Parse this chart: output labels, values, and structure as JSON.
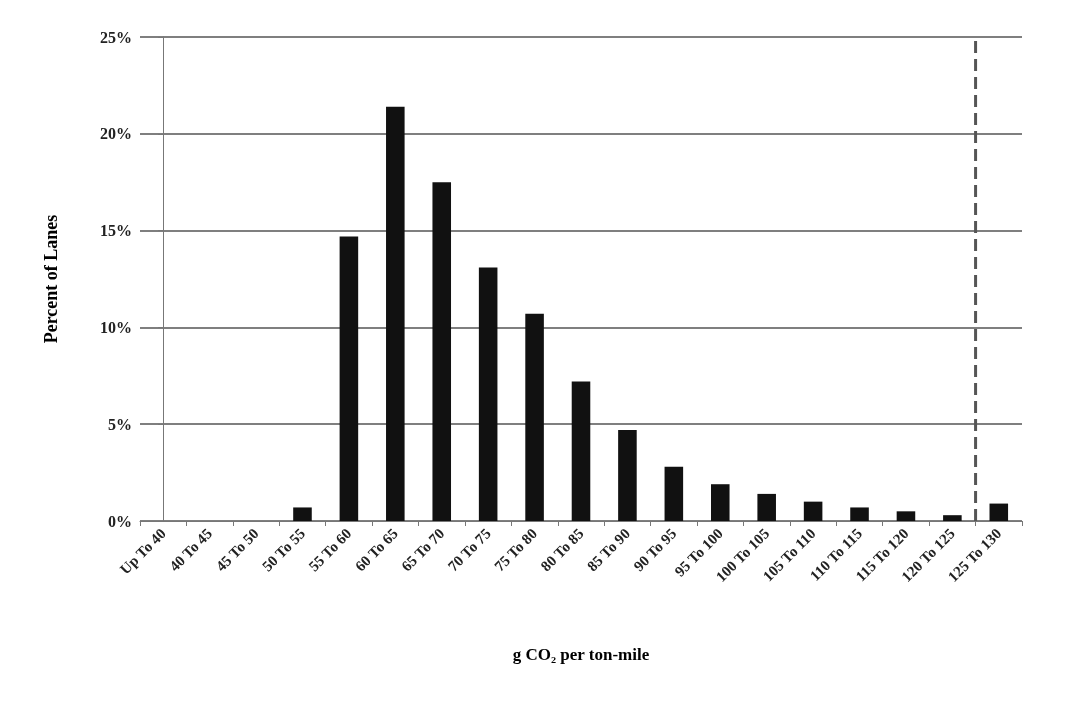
{
  "chart_data": {
    "type": "bar",
    "xlabel": "g CO₂ per ton-mile",
    "ylabel": "Percent of Lanes",
    "categories": [
      "Up To 40",
      "40 To 45",
      "45 To 50",
      "50 To 55",
      "55 To 60",
      "60 To 65",
      "65 To 70",
      "70 To 75",
      "75 To 80",
      "80 To 85",
      "85 To 90",
      "90 To 95",
      "95 To 100",
      "100 To 105",
      "105 To 110",
      "110 To 115",
      "115 To 120",
      "120 To 125",
      "125 To 130"
    ],
    "values": [
      0,
      0,
      0,
      0.7,
      14.7,
      21.4,
      17.5,
      13.1,
      10.7,
      7.2,
      4.7,
      2.8,
      1.9,
      1.4,
      1.0,
      0.7,
      0.5,
      0.3,
      0.9
    ],
    "color": "#111111",
    "ylim": [
      0,
      25
    ],
    "yticks": [
      {
        "value": 0,
        "label": "0%"
      },
      {
        "value": 5,
        "label": "5%"
      },
      {
        "value": 10,
        "label": "10%"
      },
      {
        "value": 15,
        "label": "15%"
      },
      {
        "value": 20,
        "label": "20%"
      },
      {
        "value": 25,
        "label": "25%"
      }
    ],
    "grid": "y",
    "ref_lines": [
      {
        "axis": "x",
        "value": "125 To 130",
        "color": "#555555",
        "line_style": "dashed"
      }
    ]
  }
}
